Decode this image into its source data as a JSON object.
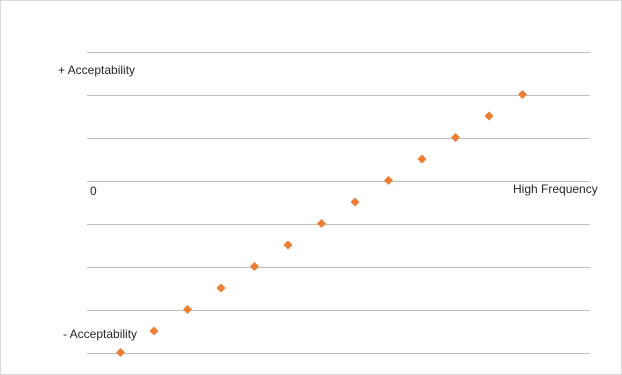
{
  "chart_data": {
    "type": "scatter",
    "title": "",
    "series": [
      {
        "values": [
          -6,
          -5,
          -4,
          -3,
          -2,
          -1,
          0,
          1,
          2,
          3,
          4,
          5,
          6
        ]
      }
    ],
    "ylim": [
      -6,
      8
    ],
    "grid": true,
    "legend": "none",
    "marker": "diamond",
    "colors": {
      "marker": "#ED7D31",
      "grid": "#BFBFBF",
      "border": "#D9D9D9"
    },
    "annotations": {
      "top": "+ Acceptability",
      "bottom": "- Acceptability",
      "origin": "0",
      "right": "High Frequency"
    }
  }
}
